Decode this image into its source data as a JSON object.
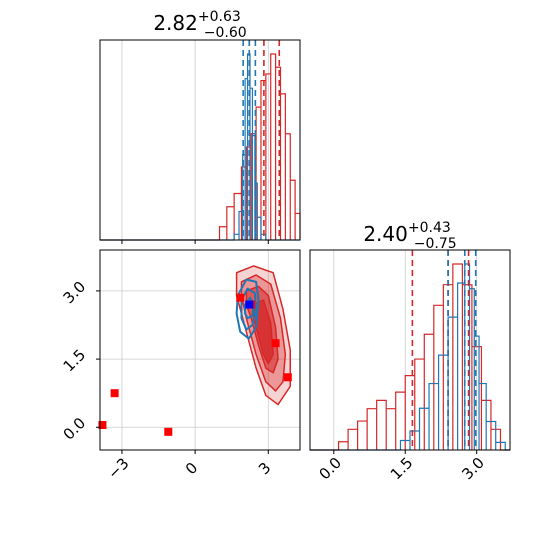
{
  "colors": {
    "red": "#d62728",
    "blue": "#1f77b4",
    "grid": "#cccccc",
    "marker_red": "#ff0000",
    "marker_blue": "#0000ff"
  },
  "chart_data": [
    {
      "type": "histogram",
      "panel": "marginal-x",
      "title_value": "2.82",
      "title_plus": "+0.63",
      "title_minus": "−0.60",
      "xlim": [
        -3.9,
        4.3
      ],
      "grid": true,
      "series": [
        {
          "color": "red",
          "bins": [
            [
              1.0,
              1.3,
              0.02
            ],
            [
              1.3,
              1.6,
              0.05
            ],
            [
              1.6,
              1.9,
              0.07
            ],
            [
              1.9,
              2.1,
              0.11
            ],
            [
              2.1,
              2.3,
              0.14
            ],
            [
              2.3,
              2.5,
              0.16
            ],
            [
              2.5,
              2.7,
              0.2
            ],
            [
              2.7,
              2.9,
              0.24
            ],
            [
              2.9,
              3.1,
              0.25
            ],
            [
              3.1,
              3.3,
              0.28
            ],
            [
              3.3,
              3.5,
              0.26
            ],
            [
              3.5,
              3.7,
              0.22
            ],
            [
              3.7,
              3.9,
              0.16
            ],
            [
              3.9,
              4.1,
              0.09
            ],
            [
              4.1,
              4.3,
              0.04
            ]
          ],
          "quantile_lines": [
            2.22,
            2.82,
            3.45
          ]
        },
        {
          "color": "blue",
          "bins": [
            [
              1.6,
              1.8,
              0.03
            ],
            [
              1.8,
              1.95,
              0.15
            ],
            [
              1.95,
              2.05,
              0.45
            ],
            [
              2.05,
              2.15,
              0.85
            ],
            [
              2.15,
              2.25,
              0.98
            ],
            [
              2.25,
              2.35,
              0.8
            ],
            [
              2.35,
              2.45,
              0.55
            ],
            [
              2.45,
              2.55,
              0.3
            ],
            [
              2.55,
              2.7,
              0.12
            ],
            [
              2.7,
              2.9,
              0.03
            ]
          ],
          "quantile_lines": [
            1.97,
            2.22,
            2.47
          ]
        }
      ]
    },
    {
      "type": "histogram",
      "panel": "marginal-y",
      "title_value": "2.40",
      "title_plus": "+0.43",
      "title_minus": "−0.75",
      "xlim": [
        -0.5,
        3.7
      ],
      "xticks": [
        "0.0",
        "1.5",
        "3.0"
      ],
      "xtick_values": [
        0,
        1.5,
        3.0
      ],
      "grid": true,
      "series": [
        {
          "color": "red",
          "bins": [
            [
              0.1,
              0.3,
              0.02
            ],
            [
              0.3,
              0.5,
              0.05
            ],
            [
              0.5,
              0.7,
              0.07
            ],
            [
              0.7,
              0.9,
              0.1
            ],
            [
              0.9,
              1.1,
              0.12
            ],
            [
              1.1,
              1.3,
              0.1
            ],
            [
              1.3,
              1.5,
              0.14
            ],
            [
              1.5,
              1.7,
              0.18
            ],
            [
              1.7,
              1.9,
              0.22
            ],
            [
              1.9,
              2.1,
              0.28
            ],
            [
              2.1,
              2.3,
              0.35
            ],
            [
              2.3,
              2.5,
              0.4
            ],
            [
              2.5,
              2.7,
              0.45
            ],
            [
              2.7,
              2.9,
              0.4
            ],
            [
              2.9,
              3.1,
              0.25
            ],
            [
              3.1,
              3.3,
              0.12
            ],
            [
              3.3,
              3.5,
              0.05
            ]
          ],
          "quantile_lines": [
            1.65,
            2.4,
            2.83
          ]
        },
        {
          "color": "blue",
          "bins": [
            [
              1.4,
              1.6,
              0.05
            ],
            [
              1.6,
              1.8,
              0.1
            ],
            [
              1.8,
              2.0,
              0.22
            ],
            [
              2.0,
              2.2,
              0.35
            ],
            [
              2.2,
              2.4,
              0.5
            ],
            [
              2.4,
              2.6,
              0.7
            ],
            [
              2.6,
              2.75,
              0.88
            ],
            [
              2.75,
              2.85,
              0.98
            ],
            [
              2.85,
              2.95,
              0.85
            ],
            [
              2.95,
              3.05,
              0.6
            ],
            [
              3.05,
              3.2,
              0.35
            ],
            [
              3.2,
              3.4,
              0.15
            ],
            [
              3.4,
              3.6,
              0.04
            ]
          ],
          "quantile_lines": [
            2.4,
            2.75,
            2.98
          ]
        }
      ]
    },
    {
      "type": "contour",
      "panel": "joint",
      "xlim": [
        -3.9,
        4.3
      ],
      "ylim": [
        -0.5,
        3.9
      ],
      "xticks": [
        "−3",
        "0",
        "3"
      ],
      "xtick_values": [
        -3,
        0,
        3
      ],
      "yticks": [
        "0.0",
        "1.5",
        "3.0"
      ],
      "ytick_values": [
        0,
        1.5,
        3.0
      ],
      "grid": true,
      "series": [
        {
          "color": "red",
          "contour_levels": [
            [
              [
                1.7,
                3.4
              ],
              [
                2.4,
                3.55
              ],
              [
                3.2,
                3.4
              ],
              [
                3.6,
                2.6
              ],
              [
                3.9,
                1.7
              ],
              [
                3.9,
                0.9
              ],
              [
                3.4,
                0.5
              ],
              [
                2.9,
                0.7
              ],
              [
                2.5,
                1.3
              ],
              [
                2.0,
                2.3
              ],
              [
                1.7,
                2.9
              ]
            ],
            [
              [
                1.9,
                3.2
              ],
              [
                2.5,
                3.35
              ],
              [
                3.1,
                3.15
              ],
              [
                3.5,
                2.4
              ],
              [
                3.7,
                1.6
              ],
              [
                3.6,
                1.0
              ],
              [
                3.3,
                0.8
              ],
              [
                2.9,
                1.0
              ],
              [
                2.5,
                1.6
              ],
              [
                2.1,
                2.4
              ],
              [
                1.9,
                2.9
              ]
            ],
            [
              [
                2.1,
                3.0
              ],
              [
                2.6,
                3.1
              ],
              [
                3.0,
                2.9
              ],
              [
                3.3,
                2.2
              ],
              [
                3.4,
                1.5
              ],
              [
                3.2,
                1.2
              ],
              [
                2.9,
                1.3
              ],
              [
                2.6,
                1.8
              ],
              [
                2.3,
                2.4
              ],
              [
                2.1,
                2.7
              ]
            ],
            [
              [
                2.4,
                2.7
              ],
              [
                2.8,
                2.8
              ],
              [
                3.1,
                2.3
              ],
              [
                3.2,
                1.6
              ],
              [
                3.0,
                1.4
              ],
              [
                2.8,
                1.6
              ],
              [
                2.6,
                2.0
              ],
              [
                2.4,
                2.4
              ]
            ]
          ],
          "markers": [
            [
              -3.8,
              0.05
            ],
            [
              -3.3,
              0.75
            ],
            [
              -1.1,
              -0.1
            ],
            [
              1.85,
              2.85
            ],
            [
              2.3,
              2.7
            ],
            [
              3.3,
              1.85
            ],
            [
              3.8,
              1.1
            ]
          ]
        },
        {
          "color": "blue",
          "contour_levels": [
            [
              [
                1.75,
                2.9
              ],
              [
                2.1,
                3.25
              ],
              [
                2.5,
                3.2
              ],
              [
                2.6,
                2.8
              ],
              [
                2.5,
                2.2
              ],
              [
                2.2,
                1.95
              ],
              [
                1.85,
                2.1
              ],
              [
                1.7,
                2.5
              ]
            ],
            [
              [
                1.9,
                2.8
              ],
              [
                2.15,
                3.05
              ],
              [
                2.45,
                2.95
              ],
              [
                2.5,
                2.6
              ],
              [
                2.35,
                2.25
              ],
              [
                2.1,
                2.15
              ],
              [
                1.9,
                2.4
              ]
            ],
            [
              [
                2.05,
                2.7
              ],
              [
                2.25,
                2.85
              ],
              [
                2.4,
                2.7
              ],
              [
                2.35,
                2.45
              ],
              [
                2.15,
                2.4
              ],
              [
                2.05,
                2.5
              ]
            ]
          ],
          "markers": [
            [
              2.22,
              2.7
            ]
          ]
        }
      ]
    }
  ]
}
